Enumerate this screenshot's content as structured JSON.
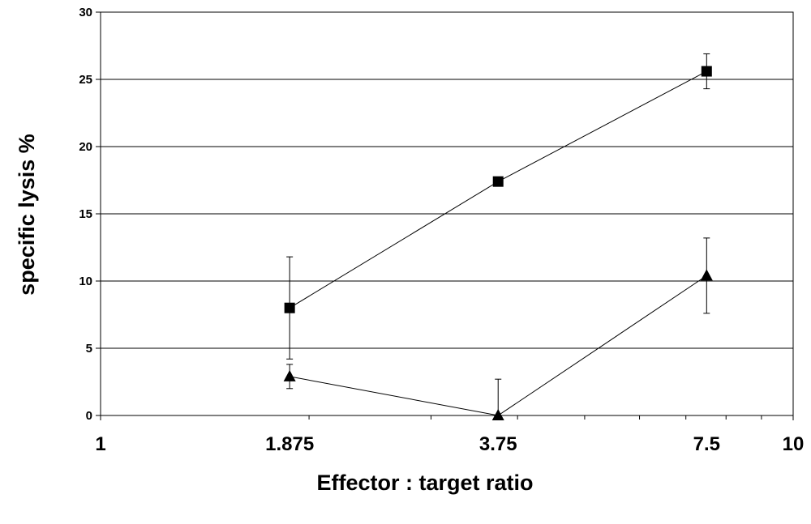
{
  "chart_data": {
    "type": "scatter",
    "title": "",
    "xlabel": "Effector : target ratio",
    "ylabel": "specific lysis %",
    "x_scale": "log",
    "xlim": [
      1,
      10
    ],
    "ylim": [
      0,
      30
    ],
    "x_ticks": [
      {
        "value": 1,
        "label": "1"
      },
      {
        "value": 1.875,
        "label": "1.875"
      },
      {
        "value": 3.75,
        "label": "3.75"
      },
      {
        "value": 7.5,
        "label": "7.5"
      },
      {
        "value": 10,
        "label": "10"
      }
    ],
    "y_ticks": [
      0,
      5,
      10,
      15,
      20,
      25,
      30
    ],
    "grid": "horizontal",
    "legend": "none",
    "series": [
      {
        "marker": "square",
        "x": [
          1.875,
          3.75,
          7.5
        ],
        "y": [
          8.0,
          17.4,
          25.6
        ],
        "error": [
          3.8,
          0,
          1.3
        ]
      },
      {
        "marker": "triangle",
        "x": [
          1.875,
          3.75,
          7.5
        ],
        "y": [
          2.9,
          0,
          10.4
        ],
        "error": [
          0.9,
          2.7,
          2.8
        ]
      }
    ]
  }
}
